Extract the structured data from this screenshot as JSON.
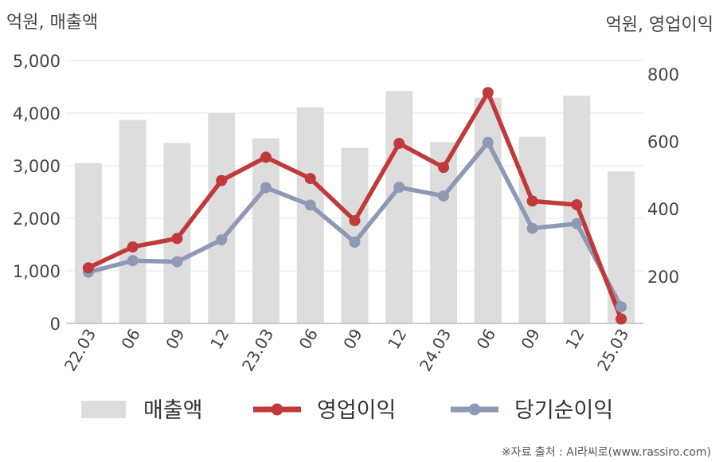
{
  "chart_data": {
    "type": "bar+line",
    "categories": [
      "22.03",
      "06",
      "09",
      "12",
      "23.03",
      "06",
      "09",
      "12",
      "24.03",
      "06",
      "09",
      "12",
      "25.03"
    ],
    "left_axis": {
      "unit": "억원, 매출액",
      "ylim": [
        0,
        5000
      ],
      "ticks": [
        "0",
        "1,000",
        "2,000",
        "3,000",
        "4,000",
        "5,000"
      ],
      "tick_values": [
        0,
        1000,
        2000,
        3000,
        4000,
        5000
      ]
    },
    "right_axis": {
      "unit": "억원, 영업이익",
      "ylim": [
        60,
        840
      ],
      "ticks": [
        "200",
        "400",
        "600",
        "800"
      ],
      "tick_values": [
        200,
        400,
        600,
        800
      ]
    },
    "series": [
      {
        "name": "매출액",
        "type": "bar",
        "axis": "left",
        "color": "#dddddd",
        "values": [
          3050,
          3870,
          3430,
          4000,
          3520,
          4110,
          3340,
          4420,
          3450,
          4290,
          3550,
          4330,
          2890
        ]
      },
      {
        "name": "영업이익",
        "type": "line",
        "axis": "right",
        "color": "#c0393b",
        "values": [
          225,
          287,
          312,
          484,
          553,
          490,
          365,
          594,
          523,
          745,
          423,
          412,
          73
        ]
      },
      {
        "name": "당기순이익",
        "type": "line",
        "axis": "right",
        "color": "#8e99b5",
        "values": [
          212,
          246,
          243,
          308,
          463,
          411,
          301,
          464,
          438,
          597,
          342,
          356,
          109
        ]
      }
    ],
    "grid": true,
    "legend_position": "bottom"
  },
  "source": "※자료 출처 : AI라씨로(www.rassiro.com)"
}
